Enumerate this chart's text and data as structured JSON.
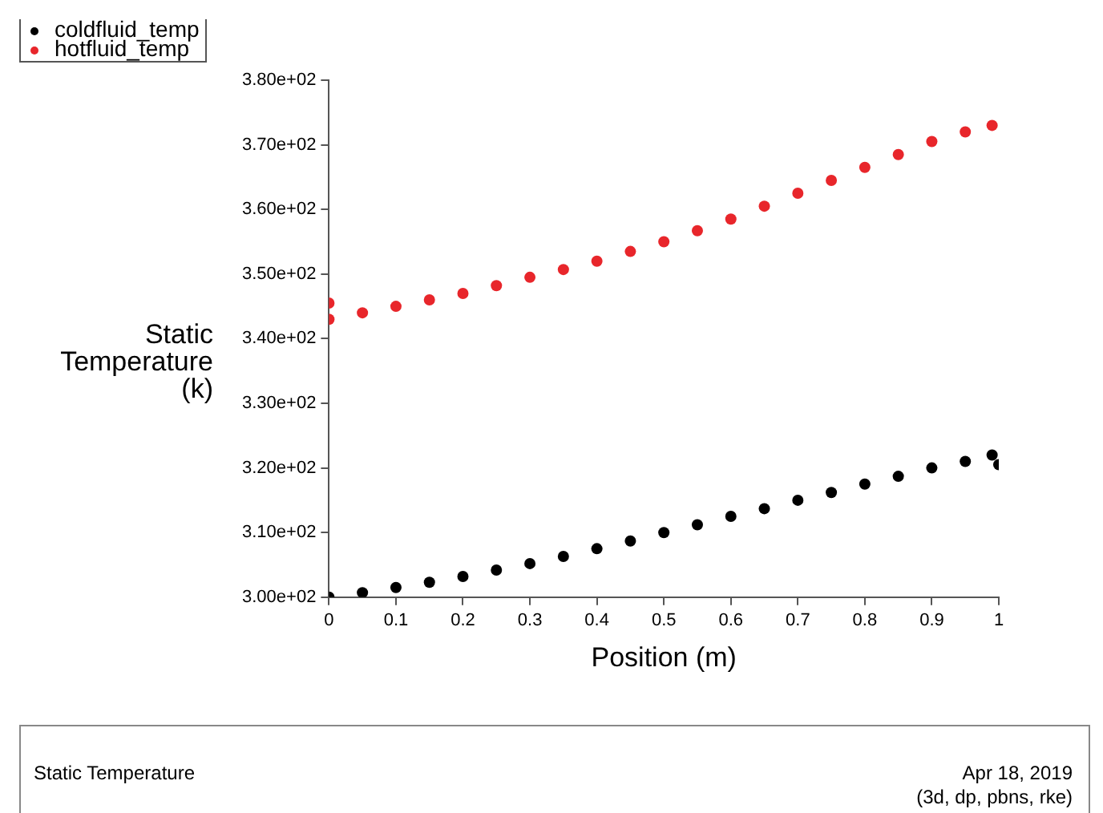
{
  "chart_data": {
    "type": "scatter",
    "xlabel": "Position (m)",
    "ylabel": "Static\nTemperature\n(k)",
    "marker": "circle",
    "legend": "top left",
    "grid": false,
    "xlim": [
      0,
      1
    ],
    "xticks": [
      0,
      0.1,
      0.2,
      0.3,
      0.4,
      0.5,
      0.6,
      0.7,
      0.8,
      0.9,
      1
    ],
    "ylim": [
      300,
      380
    ],
    "yticks": [
      {
        "value": 300,
        "label": "3.00e+02"
      },
      {
        "value": 310,
        "label": "3.10e+02"
      },
      {
        "value": 320,
        "label": "3.20e+02"
      },
      {
        "value": 330,
        "label": "3.30e+02"
      },
      {
        "value": 340,
        "label": "3.40e+02"
      },
      {
        "value": 350,
        "label": "3.50e+02"
      },
      {
        "value": 360,
        "label": "3.60e+02"
      },
      {
        "value": 370,
        "label": "3.70e+02"
      },
      {
        "value": 380,
        "label": "3.80e+02"
      }
    ],
    "series": [
      {
        "name": "coldfluid_temp",
        "color": "#000000",
        "x": [
          0,
          0.05,
          0.1,
          0.15,
          0.2,
          0.25,
          0.3,
          0.35,
          0.4,
          0.45,
          0.5,
          0.55,
          0.6,
          0.65,
          0.7,
          0.75,
          0.8,
          0.85,
          0.9,
          0.95,
          0.99,
          1
        ],
        "values": [
          300,
          300.7,
          301.5,
          302.3,
          303.2,
          304.2,
          305.2,
          306.3,
          307.5,
          308.7,
          310,
          311.2,
          312.5,
          313.7,
          315,
          316.2,
          317.5,
          318.7,
          320,
          321,
          322,
          320.5
        ]
      },
      {
        "name": "hotfluid_temp",
        "color": "#e8262b",
        "x": [
          0,
          0,
          0.05,
          0.1,
          0.15,
          0.2,
          0.25,
          0.3,
          0.35,
          0.4,
          0.45,
          0.5,
          0.55,
          0.6,
          0.65,
          0.7,
          0.75,
          0.8,
          0.85,
          0.9,
          0.95,
          0.99
        ],
        "values": [
          345.5,
          343,
          344,
          345,
          346,
          347,
          348.2,
          349.5,
          350.7,
          352,
          353.5,
          355,
          356.7,
          358.5,
          360.5,
          362.5,
          364.5,
          366.5,
          368.5,
          370.5,
          372,
          373
        ]
      }
    ],
    "annotations": [
      "Static Temperature",
      "Apr 18, 2019",
      "(3d, dp, pbns, rke)"
    ]
  }
}
